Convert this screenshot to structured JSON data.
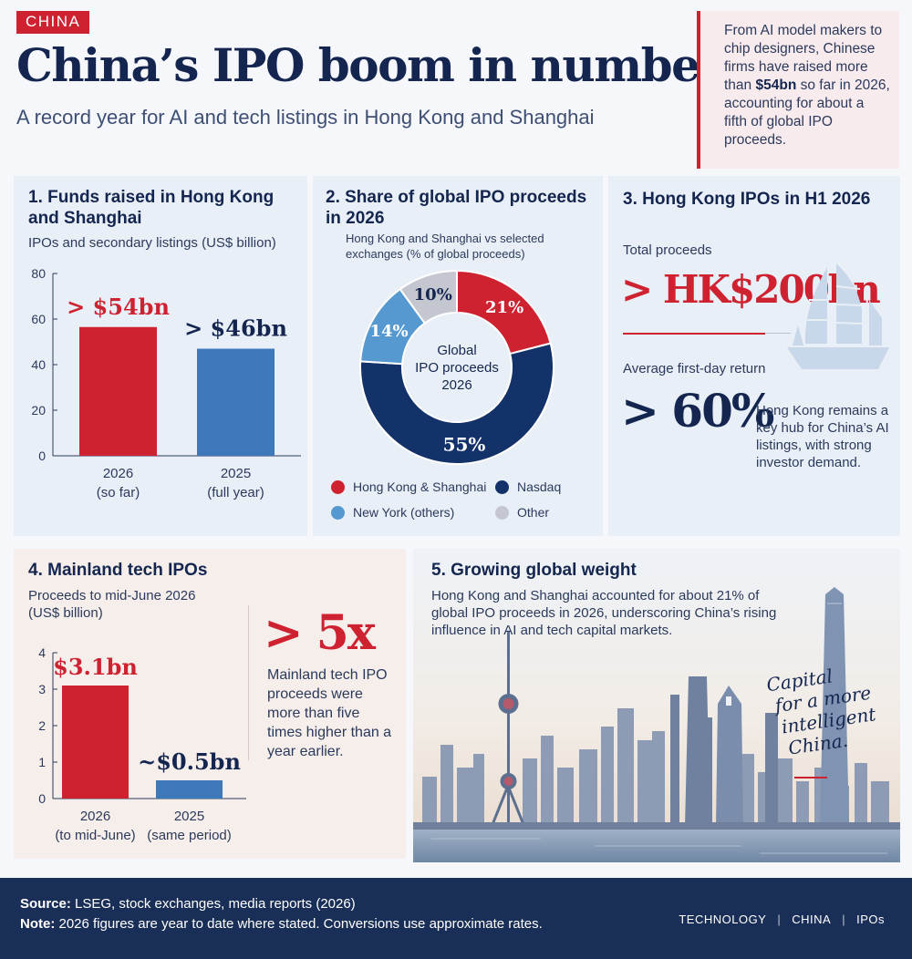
{
  "header": {
    "tag": "CHINA",
    "title": "China’s IPO boom in numbers",
    "subtitle": "A record year for AI and tech listings in Hong Kong and Shanghai",
    "intro_pre": "From AI model makers to chip designers, Chinese firms have raised more than ",
    "intro_bold": "$54bn",
    "intro_post": " so far in 2026, accounting for about a fifth of global IPO proceeds."
  },
  "panel1": {
    "title": "1. Funds raised in Hong Kong and Shanghai",
    "subtitle": "IPOs and secondary listings (US$ billion)"
  },
  "panel2": {
    "title": "2. Share of global IPO proceeds in 2026",
    "subtitle": "Hong Kong and Shanghai vs selected exchanges (% of global proceeds)",
    "center_label": [
      "Global",
      "IPO proceeds",
      "2026"
    ]
  },
  "panel3": {
    "title": "3. Hong Kong IPOs in H1 2026",
    "proceeds_label": "Total proceeds",
    "proceeds_value": "> HK$200bn",
    "return_label": "Average first-day return",
    "return_value": "> 60%",
    "note": "Hong Kong remains a key hub for China’s AI listings, with strong investor demand."
  },
  "panel4": {
    "title": "4. Mainland tech IPOs",
    "subtitle": "Proceeds to mid-June 2026 (US$ billion)",
    "multiple": "> 5x",
    "note": "Mainland tech IPO proceeds were more than five times higher than a year earlier."
  },
  "panel5": {
    "title": "5. Growing global weight",
    "body": "Hong Kong and Shanghai accounted for about 21% of global IPO proceeds in 2026, underscoring China’s rising influence in AI and tech capital markets.",
    "tagline": [
      "Capital",
      "for a more",
      "intelligent",
      "China."
    ]
  },
  "footer": {
    "source_label": "Source:",
    "source_text": " LSEG, stock exchanges, media reports (2026)",
    "note_label": "Note:",
    "note_text": " 2026 figures are year to date where stated. Conversions use approximate rates.",
    "tags": [
      "TECHNOLOGY",
      "CHINA",
      "IPOs"
    ]
  },
  "colors": {
    "red": "#cf2231",
    "navy": "#14264f",
    "blue": "#3d78b8",
    "lightblue": "#5599d0",
    "grey": "#c4c7cf"
  },
  "chart_data": [
    {
      "type": "bar",
      "categories": [
        [
          "2026",
          "(so far)"
        ],
        [
          "2025",
          "(full year)"
        ]
      ],
      "values": [
        56.5,
        47
      ],
      "data_labels": [
        "> $54bn",
        "> $46bn"
      ],
      "ylim": [
        0,
        80
      ],
      "yticks": [
        0,
        20,
        40,
        60,
        80
      ],
      "colors": [
        "#cf2231",
        "#3d78b8"
      ]
    },
    {
      "type": "pie",
      "categories": [
        "Hong Kong & Shanghai",
        "Nasdaq",
        "New York (others)",
        "Other"
      ],
      "values": [
        21,
        55,
        14,
        10
      ],
      "data_labels": [
        "21%",
        "55%",
        "14%",
        "10%"
      ],
      "colors": [
        "#cf2231",
        "#14326a",
        "#5599d0",
        "#c4c7cf"
      ]
    },
    {
      "type": "bar",
      "categories": [
        [
          "2026",
          "(to mid-June)"
        ],
        [
          "2025",
          "(same period)"
        ]
      ],
      "values": [
        3.1,
        0.5
      ],
      "data_labels": [
        "$3.1bn",
        "~$0.5bn"
      ],
      "ylim": [
        0,
        4
      ],
      "yticks": [
        0,
        1,
        2,
        3,
        4
      ],
      "colors": [
        "#cf2231",
        "#3d78b8"
      ]
    }
  ]
}
